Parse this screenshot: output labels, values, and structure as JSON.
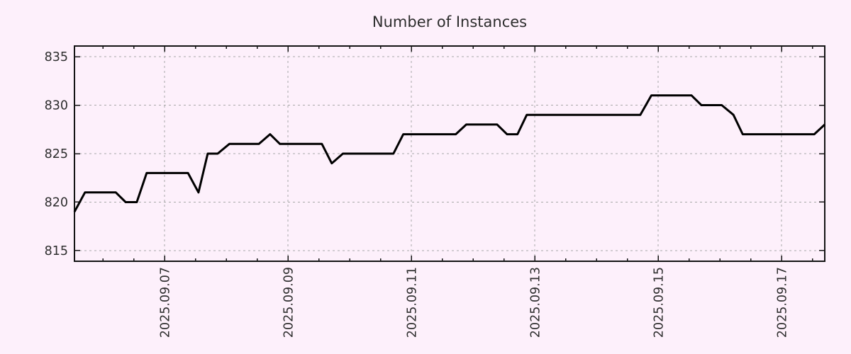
{
  "colors": {
    "background": "#fdf0fb",
    "line": "#000000",
    "grid": "#a8a8a8",
    "axis": "#141414",
    "text": "#2d2d2d"
  },
  "chart_data": {
    "type": "line",
    "title": "Number of Instances",
    "xlabel": "",
    "ylabel": "",
    "grid": true,
    "legend": "none",
    "x_axis": {
      "range": [
        5.54,
        17.7
      ],
      "tick_positions": [
        7,
        9,
        11,
        13,
        15,
        17
      ],
      "tick_labels": [
        "2025.09.07",
        "2025.09.09",
        "2025.09.11",
        "2025.09.13",
        "2025.09.15",
        "2025.09.17"
      ],
      "minor_tick_step": 0.5,
      "labels_rotated_degrees": -90
    },
    "y_axis": {
      "range": [
        813.9,
        836.1
      ],
      "tick_positions": [
        815,
        820,
        825,
        830,
        835
      ],
      "tick_labels": [
        "815",
        "820",
        "825",
        "830",
        "835"
      ]
    },
    "series": [
      {
        "color": "#000000",
        "points": [
          [
            5.54,
            819
          ],
          [
            5.71,
            821
          ],
          [
            6.21,
            821
          ],
          [
            6.37,
            820
          ],
          [
            6.55,
            820
          ],
          [
            6.71,
            823
          ],
          [
            7.38,
            823
          ],
          [
            7.55,
            821
          ],
          [
            7.7,
            825
          ],
          [
            7.86,
            825
          ],
          [
            8.05,
            826
          ],
          [
            8.53,
            826
          ],
          [
            8.71,
            827
          ],
          [
            8.87,
            826
          ],
          [
            9.55,
            826
          ],
          [
            9.71,
            824
          ],
          [
            9.89,
            825
          ],
          [
            10.71,
            825
          ],
          [
            10.87,
            827
          ],
          [
            11.72,
            827
          ],
          [
            11.89,
            828
          ],
          [
            12.39,
            828
          ],
          [
            12.55,
            827
          ],
          [
            12.72,
            827
          ],
          [
            12.87,
            829
          ],
          [
            14.71,
            829
          ],
          [
            14.89,
            831
          ],
          [
            15.54,
            831
          ],
          [
            15.7,
            830
          ],
          [
            16.03,
            830
          ],
          [
            16.22,
            829
          ],
          [
            16.37,
            827
          ],
          [
            17.53,
            827
          ],
          [
            17.7,
            828
          ]
        ]
      }
    ]
  }
}
